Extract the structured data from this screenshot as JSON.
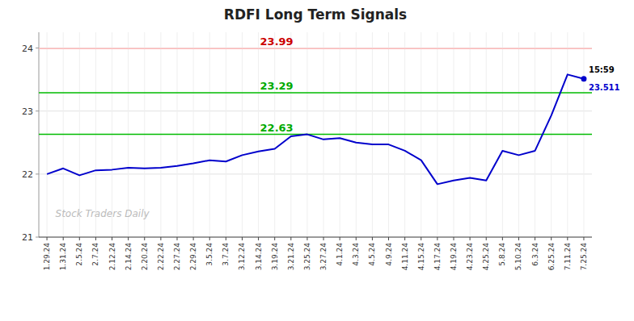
{
  "chart_data": {
    "type": "line",
    "title": "RDFI Long Term Signals",
    "watermark": "Stock Traders Daily",
    "color": "#0000cc",
    "categories": [
      "1.29.24",
      "1.31.24",
      "2.5.24",
      "2.7.24",
      "2.12.24",
      "2.14.24",
      "2.20.24",
      "2.22.24",
      "2.27.24",
      "2.29.24",
      "3.5.24",
      "3.7.24",
      "3.12.24",
      "3.14.24",
      "3.19.24",
      "3.21.24",
      "3.25.24",
      "3.27.24",
      "4.1.24",
      "4.3.24",
      "4.5.24",
      "4.9.24",
      "4.11.24",
      "4.15.24",
      "4.17.24",
      "4.19.24",
      "4.23.24",
      "4.25.24",
      "5.8.24",
      "5.10.24",
      "6.3.24",
      "6.25.24",
      "7.11.24",
      "7.25.24"
    ],
    "values": [
      22.0,
      22.09,
      21.98,
      22.06,
      22.07,
      22.1,
      22.09,
      22.1,
      22.13,
      22.17,
      22.22,
      22.2,
      22.3,
      22.36,
      22.4,
      22.6,
      22.63,
      22.55,
      22.57,
      22.5,
      22.47,
      22.47,
      22.37,
      22.22,
      21.84,
      21.9,
      21.94,
      21.9,
      22.37,
      22.3,
      22.37,
      22.93,
      23.58,
      23.511
    ],
    "value_labels": [
      null,
      null,
      null,
      null,
      null,
      null,
      null,
      null,
      null,
      null,
      null,
      null,
      null,
      null,
      null,
      null,
      null,
      null,
      null,
      null,
      null,
      null,
      null,
      null,
      null,
      null,
      null,
      null,
      null,
      null,
      null,
      null,
      null,
      "23.511"
    ],
    "reference_lines": [
      {
        "y": 23.99,
        "label": "23.99",
        "color": "#ffbbbb",
        "label_color": "#cc0000"
      },
      {
        "y": 23.29,
        "label": "23.29",
        "color": "#00bb00",
        "label_color": "#00aa00"
      },
      {
        "y": 22.63,
        "label": "22.63",
        "color": "#00bb00",
        "label_color": "#00aa00"
      }
    ],
    "annotations": [
      {
        "text": "15:59",
        "x": "7.25.24"
      }
    ],
    "ylim": [
      21,
      24.25
    ],
    "yticks": [
      21,
      22,
      23,
      24
    ],
    "grid": true
  }
}
